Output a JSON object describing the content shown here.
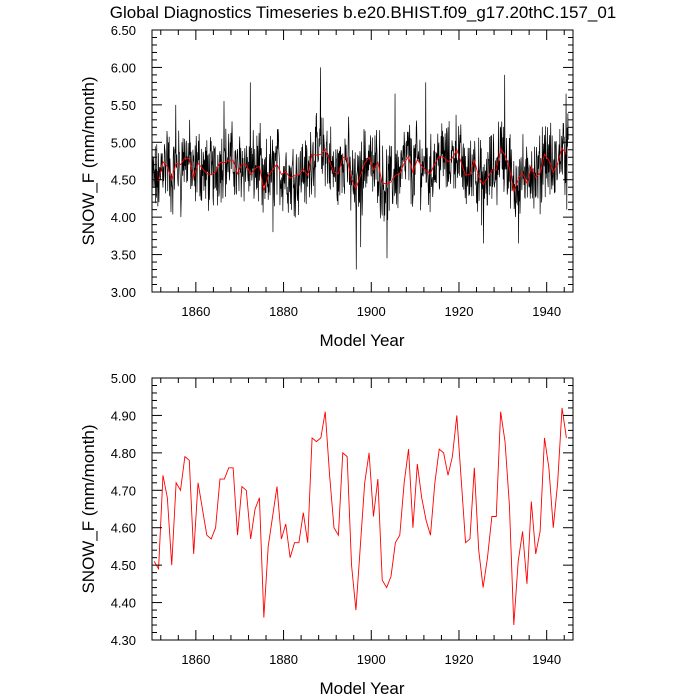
{
  "title": "Global Diagnostics Timeseries b.e20.BHIST.f09_g17.20thC.157_01",
  "chart_data": [
    {
      "type": "line",
      "xlabel": "Model Year",
      "ylabel": "SNOW_F (mm/month)",
      "xlim": [
        1850,
        1946
      ],
      "ylim": [
        3.0,
        6.5
      ],
      "xticks": [
        1860,
        1880,
        1900,
        1920,
        1940
      ],
      "yticks": [
        "3.00",
        "3.50",
        "4.00",
        "4.50",
        "5.00",
        "5.50",
        "6.00",
        "6.50"
      ],
      "grid": false,
      "series": [
        {
          "description": "monthly values",
          "color": "#000000",
          "x_start": 1850,
          "x_step_years": 0.08333,
          "n_points": 1140,
          "mean": 4.65,
          "range": [
            3.3,
            6.0
          ],
          "peaks": [
            [
              1853,
              5.15
            ],
            [
              1855,
              5.5
            ],
            [
              1866,
              5.55
            ],
            [
              1872,
              5.8
            ],
            [
              1888,
              6.0
            ],
            [
              1905,
              5.65
            ],
            [
              1912,
              5.8
            ],
            [
              1930,
              5.9
            ],
            [
              1944,
              5.65
            ],
            [
              1945,
              6.0
            ]
          ],
          "troughs": [
            [
              1851,
              4.2
            ],
            [
              1856,
              4.0
            ],
            [
              1877,
              3.8
            ],
            [
              1896,
              3.3
            ],
            [
              1897,
              3.6
            ],
            [
              1903,
              3.45
            ],
            [
              1925,
              3.65
            ],
            [
              1933,
              3.65
            ],
            [
              1944,
              4.1
            ]
          ]
        },
        {
          "description": "annual mean",
          "color": "#ff0000",
          "ref": "bottom_panel_values"
        }
      ]
    },
    {
      "type": "line",
      "xlabel": "Model Year",
      "ylabel": "SNOW_F (mm/month)",
      "xlim": [
        1850,
        1946
      ],
      "ylim": [
        4.3,
        5.0
      ],
      "xticks": [
        1860,
        1880,
        1900,
        1920,
        1940
      ],
      "yticks": [
        "4.30",
        "4.40",
        "4.50",
        "4.60",
        "4.70",
        "4.80",
        "4.90",
        "5.00"
      ],
      "grid": false,
      "series": [
        {
          "color": "#ff0000",
          "x_start": 1850,
          "values": [
            4.51,
            4.49,
            4.74,
            4.68,
            4.5,
            4.72,
            4.7,
            4.79,
            4.78,
            4.53,
            4.72,
            4.65,
            4.58,
            4.57,
            4.6,
            4.73,
            4.73,
            4.76,
            4.76,
            4.58,
            4.71,
            4.7,
            4.57,
            4.65,
            4.68,
            4.36,
            4.55,
            4.63,
            4.71,
            4.57,
            4.61,
            4.52,
            4.56,
            4.56,
            4.64,
            4.56,
            4.84,
            4.83,
            4.84,
            4.91,
            4.74,
            4.6,
            4.58,
            4.8,
            4.79,
            4.5,
            4.38,
            4.55,
            4.72,
            4.8,
            4.63,
            4.73,
            4.46,
            4.44,
            4.47,
            4.56,
            4.58,
            4.72,
            4.81,
            4.6,
            4.77,
            4.68,
            4.62,
            4.58,
            4.72,
            4.81,
            4.8,
            4.74,
            4.79,
            4.9,
            4.73,
            4.56,
            4.57,
            4.76,
            4.54,
            4.44,
            4.52,
            4.63,
            4.63,
            4.91,
            4.83,
            4.66,
            4.34,
            4.51,
            4.59,
            4.45,
            4.67,
            4.53,
            4.59,
            4.84,
            4.76,
            4.6,
            4.72,
            4.92,
            4.84
          ]
        }
      ]
    }
  ]
}
